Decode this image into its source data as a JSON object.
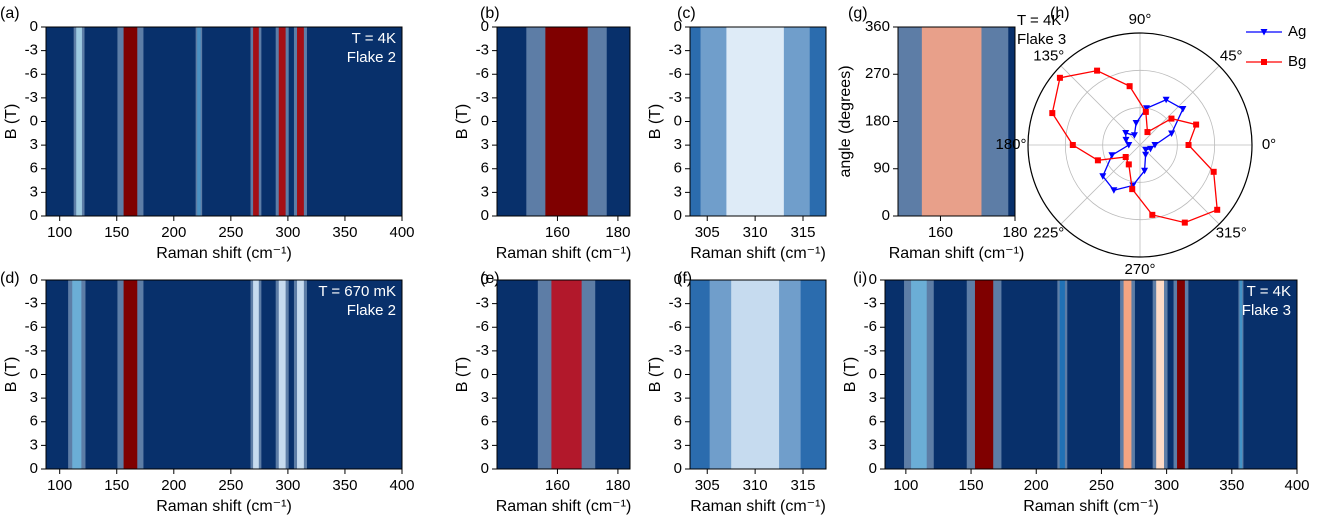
{
  "chart_data": [
    {
      "type": "heatmap",
      "panel_label": "(a)",
      "xlabel": "Raman shift (cm⁻¹)",
      "ylabel": "B (T)",
      "annotation": [
        "T = 4K",
        "Flake 2"
      ],
      "annotation_color": "#ffffff",
      "xlim": [
        88,
        400
      ],
      "xticks": [
        100,
        150,
        200,
        250,
        300,
        350,
        400
      ],
      "ylim": [
        0,
        8
      ],
      "yticks": [
        {
          "value": 8,
          "label": "0"
        },
        {
          "value": 7,
          "label": "-3"
        },
        {
          "value": 6,
          "label": "-6"
        },
        {
          "value": 5,
          "label": "-3"
        },
        {
          "value": 4,
          "label": "0"
        },
        {
          "value": 3,
          "label": "3"
        },
        {
          "value": 2,
          "label": "6"
        },
        {
          "value": 1,
          "label": "3"
        },
        {
          "value": 0,
          "label": "0"
        }
      ],
      "background": "#08306b",
      "peaks": [
        {
          "x": 117,
          "width": 5,
          "color": "#9ecae1"
        },
        {
          "x": 162,
          "width": 12,
          "color": "#7f0000"
        },
        {
          "x": 222,
          "width": 3,
          "color": "#4a90c2"
        },
        {
          "x": 272,
          "width": 5,
          "color": "#a50f15"
        },
        {
          "x": 295,
          "width": 6,
          "color": "#a50f15"
        },
        {
          "x": 311,
          "width": 6,
          "color": "#a50f15"
        }
      ]
    },
    {
      "type": "heatmap",
      "panel_label": "(b)",
      "xlabel": "Raman shift (cm⁻¹)",
      "ylabel": "B (T)",
      "xlim": [
        140,
        184
      ],
      "xticks": [
        160,
        180
      ],
      "ylim": [
        0,
        8
      ],
      "yticks": [
        {
          "value": 8,
          "label": "0"
        },
        {
          "value": 7,
          "label": "-3"
        },
        {
          "value": 6,
          "label": "-6"
        },
        {
          "value": 5,
          "label": "-3"
        },
        {
          "value": 4,
          "label": "0"
        },
        {
          "value": 3,
          "label": "3"
        },
        {
          "value": 2,
          "label": "6"
        },
        {
          "value": 1,
          "label": "3"
        },
        {
          "value": 0,
          "label": "0"
        }
      ],
      "background": "#08306b",
      "peaks": [
        {
          "x": 163,
          "width": 14,
          "color": "#7f0000"
        }
      ]
    },
    {
      "type": "heatmap",
      "panel_label": "(c)",
      "xlabel": "Raman shift (cm⁻¹)",
      "ylabel": "B (T)",
      "xlim": [
        303.2,
        317.4
      ],
      "xticks": [
        305,
        310,
        315
      ],
      "ylim": [
        0,
        8
      ],
      "yticks": [
        {
          "value": 8,
          "label": "0"
        },
        {
          "value": 7,
          "label": "-3"
        },
        {
          "value": 6,
          "label": "-6"
        },
        {
          "value": 5,
          "label": "-3"
        },
        {
          "value": 4,
          "label": "0"
        },
        {
          "value": 3,
          "label": "3"
        },
        {
          "value": 2,
          "label": "6"
        },
        {
          "value": 1,
          "label": "3"
        },
        {
          "value": 0,
          "label": "0"
        }
      ],
      "background": "#2b6cae",
      "peaks": [
        {
          "x": 310,
          "width": 6,
          "color": "#deebf7"
        }
      ]
    },
    {
      "type": "heatmap",
      "panel_label": "(g)",
      "xlabel": "Raman shift (cm⁻¹)",
      "ylabel": "angle (degrees)",
      "annotation": [
        "T = 4K",
        "Flake 3"
      ],
      "annotation_color": "#000000",
      "xlim": [
        148.6,
        180
      ],
      "xticks": [
        160,
        180
      ],
      "ylim": [
        0,
        360
      ],
      "yticks": [
        0,
        90,
        180,
        270,
        360
      ],
      "background": "#08306b",
      "peaks": [
        {
          "x": 163,
          "width": 16,
          "color": "#e8a08a"
        }
      ]
    },
    {
      "type": "polar",
      "panel_label": "(h)",
      "rlim": [
        0,
        3
      ],
      "rticks": [
        1,
        2,
        3
      ],
      "thetaticks": [
        {
          "value": 0,
          "label": "0°"
        },
        {
          "value": 45,
          "label": "45°"
        },
        {
          "value": 90,
          "label": "90°"
        },
        {
          "value": 135,
          "label": "135°"
        },
        {
          "value": 180,
          "label": "180°"
        },
        {
          "value": 225,
          "label": "225°"
        },
        {
          "value": 270,
          "label": "270°"
        },
        {
          "value": 315,
          "label": "315°"
        }
      ],
      "series": [
        {
          "name": "Ag",
          "color": "#0000ff",
          "marker": "v",
          "theta": [
            0,
            20,
            40,
            60,
            80,
            100,
            120,
            140,
            160,
            180,
            200,
            220,
            240,
            260,
            280,
            300,
            320,
            340
          ],
          "values": [
            0.4,
            0.9,
            1.5,
            1.4,
            1.0,
            0.6,
            0.3,
            0.5,
            0.4,
            0.3,
            0.8,
            1.3,
            1.4,
            1.1,
            0.7,
            0.3,
            0.2,
            0.3
          ]
        },
        {
          "name": "Bg",
          "color": "#ff0000",
          "marker": "s",
          "theta": [
            0,
            20,
            40,
            60,
            80,
            100,
            120,
            140,
            160,
            180,
            200,
            220,
            240,
            260,
            280,
            300,
            320,
            340
          ],
          "values": [
            1.3,
            1.6,
            1.1,
            0.4,
            0.9,
            1.6,
            2.3,
            2.8,
            2.5,
            1.8,
            1.2,
            0.5,
            0.6,
            1.2,
            1.9,
            2.4,
            2.7,
            2.1
          ]
        }
      ]
    },
    {
      "type": "heatmap",
      "panel_label": "(d)",
      "xlabel": "Raman shift (cm⁻¹)",
      "ylabel": "B (T)",
      "annotation": [
        "T = 670 mK",
        "Flake 2"
      ],
      "annotation_color": "#ffffff",
      "xlim": [
        88,
        400
      ],
      "xticks": [
        100,
        150,
        200,
        250,
        300,
        350,
        400
      ],
      "ylim": [
        0,
        8
      ],
      "yticks": [
        {
          "value": 8,
          "label": "0"
        },
        {
          "value": 7,
          "label": "-3"
        },
        {
          "value": 6,
          "label": "-6"
        },
        {
          "value": 5,
          "label": "-3"
        },
        {
          "value": 4,
          "label": "0"
        },
        {
          "value": 3,
          "label": "3"
        },
        {
          "value": 2,
          "label": "6"
        },
        {
          "value": 1,
          "label": "3"
        },
        {
          "value": 0,
          "label": "0"
        }
      ],
      "background": "#08306b",
      "peaks": [
        {
          "x": 115,
          "width": 8,
          "color": "#6baed6"
        },
        {
          "x": 162,
          "width": 12,
          "color": "#7f0000"
        },
        {
          "x": 272,
          "width": 5,
          "color": "#c6dbef"
        },
        {
          "x": 295,
          "width": 6,
          "color": "#c6dbef"
        },
        {
          "x": 311,
          "width": 6,
          "color": "#c6dbef"
        }
      ]
    },
    {
      "type": "heatmap",
      "panel_label": "(e)",
      "xlabel": "Raman shift (cm⁻¹)",
      "ylabel": "B (T)",
      "xlim": [
        140,
        184
      ],
      "xticks": [
        160,
        180
      ],
      "ylim": [
        0,
        8
      ],
      "yticks": [
        {
          "value": 8,
          "label": "0"
        },
        {
          "value": 7,
          "label": "-3"
        },
        {
          "value": 6,
          "label": "-6"
        },
        {
          "value": 5,
          "label": "-3"
        },
        {
          "value": 4,
          "label": "0"
        },
        {
          "value": 3,
          "label": "3"
        },
        {
          "value": 2,
          "label": "6"
        },
        {
          "value": 1,
          "label": "3"
        },
        {
          "value": 0,
          "label": "0"
        }
      ],
      "background": "#08306b",
      "peaks": [
        {
          "x": 163,
          "width": 10,
          "color": "#b2182b"
        }
      ]
    },
    {
      "type": "heatmap",
      "panel_label": "(f)",
      "xlabel": "Raman shift (cm⁻¹)",
      "ylabel": "B (T)",
      "xlim": [
        303.2,
        317.4
      ],
      "xticks": [
        305,
        310,
        315
      ],
      "ylim": [
        0,
        8
      ],
      "yticks": [
        {
          "value": 8,
          "label": "0"
        },
        {
          "value": 7,
          "label": "-3"
        },
        {
          "value": 6,
          "label": "-6"
        },
        {
          "value": 5,
          "label": "-3"
        },
        {
          "value": 4,
          "label": "0"
        },
        {
          "value": 3,
          "label": "3"
        },
        {
          "value": 2,
          "label": "6"
        },
        {
          "value": 1,
          "label": "3"
        },
        {
          "value": 0,
          "label": "0"
        }
      ],
      "background": "#2b6cae",
      "peaks": [
        {
          "x": 310,
          "width": 5,
          "color": "#c6dbef"
        }
      ]
    },
    {
      "type": "heatmap",
      "panel_label": "(i)",
      "xlabel": "Raman shift (cm⁻¹)",
      "ylabel": "B (T)",
      "annotation": [
        "T = 4K",
        "Flake 3"
      ],
      "annotation_color": "#ffffff",
      "xlim": [
        84,
        400
      ],
      "xticks": [
        100,
        150,
        200,
        250,
        300,
        350,
        400
      ],
      "ylim": [
        0,
        8
      ],
      "yticks": [
        {
          "value": 8,
          "label": "0"
        },
        {
          "value": 7,
          "label": "-3"
        },
        {
          "value": 6,
          "label": "-6"
        },
        {
          "value": 5,
          "label": "-3"
        },
        {
          "value": 4,
          "label": "0"
        },
        {
          "value": 3,
          "label": "3"
        },
        {
          "value": 2,
          "label": "6"
        },
        {
          "value": 1,
          "label": "3"
        },
        {
          "value": 0,
          "label": "0"
        }
      ],
      "background": "#08306b",
      "peaks": [
        {
          "x": 110,
          "width": 12,
          "color": "#6baed6"
        },
        {
          "x": 160,
          "width": 14,
          "color": "#7f0000"
        },
        {
          "x": 220,
          "width": 4,
          "color": "#2171b5"
        },
        {
          "x": 270,
          "width": 6,
          "color": "#f4a582"
        },
        {
          "x": 295,
          "width": 6,
          "color": "#fddbc7"
        },
        {
          "x": 311,
          "width": 6,
          "color": "#7f0000"
        },
        {
          "x": 357,
          "width": 2,
          "color": "#4292c6"
        }
      ]
    }
  ]
}
